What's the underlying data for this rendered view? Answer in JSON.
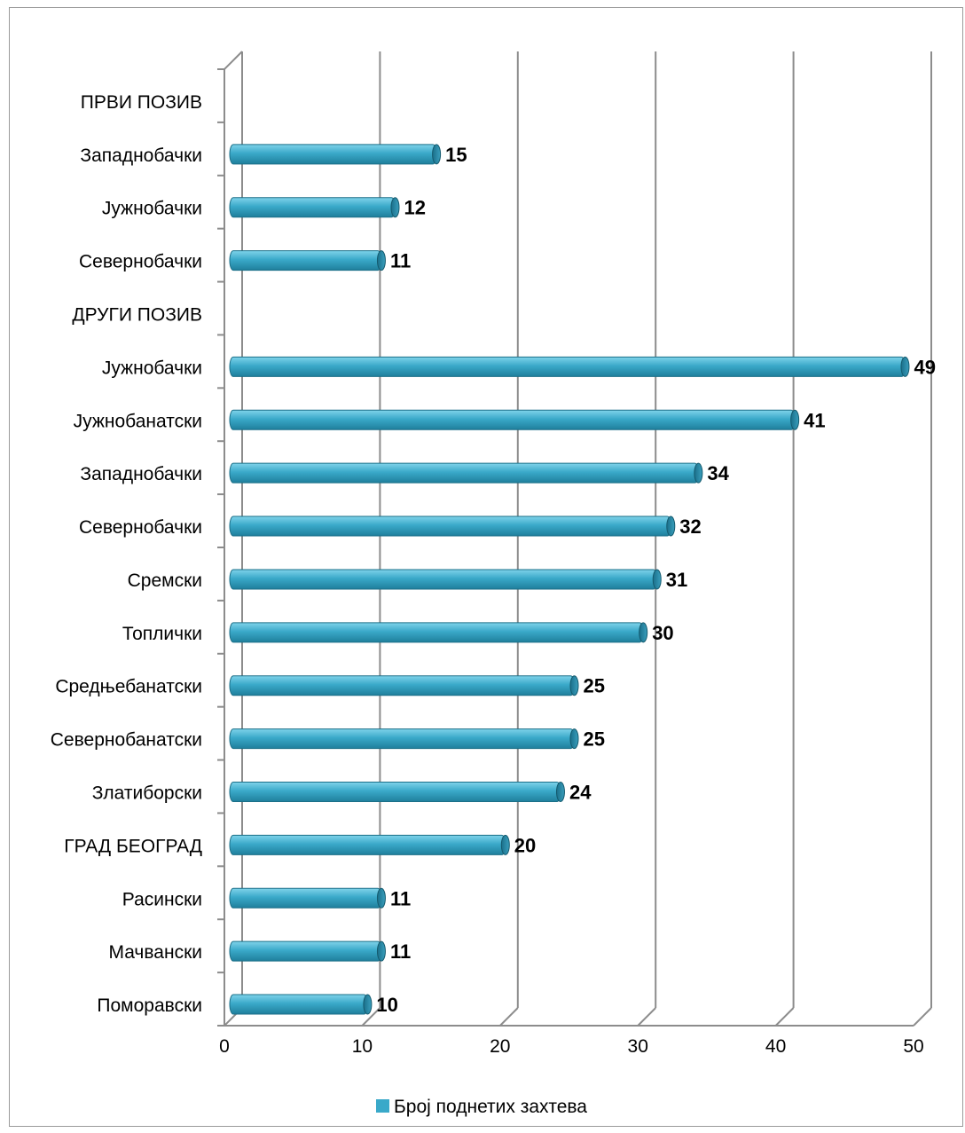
{
  "chart_data": {
    "type": "bar",
    "orientation": "horizontal",
    "categories": [
      "ПРВИ ПОЗИВ",
      "Западнобачки",
      "Јужнобачки",
      "Севернобачки",
      "ДРУГИ ПОЗИВ",
      "Јужнобачки",
      "Јужнобанатски",
      "Западнобачки",
      "Севернобачки",
      "Сремски",
      "Топлички",
      "Средњебанатски",
      "Севернобанатски",
      "Златиборски",
      "ГРАД БЕОГРАД",
      "Расински",
      "Мачвански",
      "Поморавски"
    ],
    "series": [
      {
        "name": "Број поднетих захтева",
        "values": [
          null,
          15,
          12,
          11,
          null,
          49,
          41,
          34,
          32,
          31,
          30,
          25,
          25,
          24,
          20,
          11,
          11,
          10
        ],
        "color": "#3aa9c9"
      }
    ],
    "xticks": [
      "0",
      "10",
      "20",
      "30",
      "40",
      "50"
    ],
    "xlim": [
      0,
      50
    ],
    "grid": true,
    "legend_position": "bottom",
    "title": "",
    "xlabel": "",
    "ylabel": ""
  }
}
